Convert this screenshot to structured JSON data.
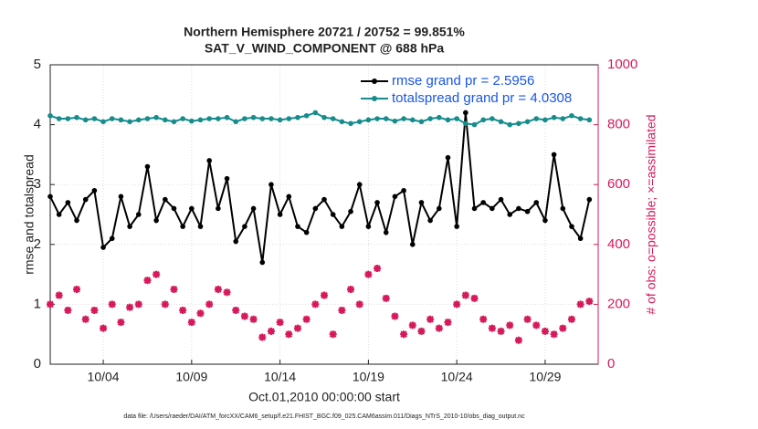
{
  "chart_data": {
    "type": "line",
    "title": "Northern Hemisphere 20721 / 20752 = 99.851%",
    "subtitle": "SAT_V_WIND_COMPONENT @ 688 hPa",
    "xlabel": "Oct.01,2010 00:00:00 start",
    "ylabel": "rmse and totalspread",
    "y2label": "# of obs: o=possible; ×=assimilated",
    "footnote": "data file: /Users/raeder/DAI/ATM_forcXX/CAM6_setup/f.e21.FHIST_BGC.f09_025.CAM6assim.011/Diags_NTrS_2010-10/obs_diag_output.nc",
    "x": [
      0,
      0.5,
      1,
      1.5,
      2,
      2.5,
      3,
      3.5,
      4,
      4.5,
      5,
      5.5,
      6,
      6.5,
      7,
      7.5,
      8,
      8.5,
      9,
      9.5,
      10,
      10.5,
      11,
      11.5,
      12,
      12.5,
      13,
      13.5,
      14,
      14.5,
      15,
      15.5,
      16,
      16.5,
      17,
      17.5,
      18,
      18.5,
      19,
      19.5,
      20,
      20.5,
      21,
      21.5,
      22,
      22.5,
      23,
      23.5,
      24,
      24.5,
      25,
      25.5,
      26,
      26.5,
      27,
      27.5,
      28,
      28.5,
      29,
      29.5,
      30,
      30.5
    ],
    "xlim": [
      0,
      31
    ],
    "xticks": [
      {
        "value": 3,
        "label": "10/04"
      },
      {
        "value": 8,
        "label": "10/09"
      },
      {
        "value": 13,
        "label": "10/14"
      },
      {
        "value": 18,
        "label": "10/19"
      },
      {
        "value": 23,
        "label": "10/24"
      },
      {
        "value": 28,
        "label": "10/29"
      }
    ],
    "ylim": [
      0,
      5
    ],
    "yticks": [
      0,
      1,
      2,
      3,
      4,
      5
    ],
    "y2lim": [
      0,
      1000
    ],
    "y2ticks": [
      0,
      200,
      400,
      600,
      800,
      1000
    ],
    "grid": true,
    "legend": "upper right",
    "series": [
      {
        "name": "rmse grand pr = 2.5956",
        "color": "#000000",
        "values": [
          2.8,
          2.5,
          2.7,
          2.4,
          2.75,
          2.9,
          1.95,
          2.1,
          2.8,
          2.3,
          2.5,
          3.3,
          2.4,
          2.75,
          2.6,
          2.3,
          2.6,
          2.3,
          3.4,
          2.6,
          3.1,
          2.05,
          2.3,
          2.6,
          1.7,
          3.0,
          2.5,
          2.8,
          2.3,
          2.2,
          2.6,
          2.75,
          2.5,
          2.3,
          2.55,
          3.0,
          2.3,
          2.7,
          2.2,
          2.8,
          2.9,
          2.0,
          2.7,
          2.4,
          2.6,
          3.45,
          2.3,
          4.2,
          2.6,
          2.7,
          2.6,
          2.75,
          2.5,
          2.6,
          2.55,
          2.7,
          2.4,
          3.5,
          2.6,
          2.3,
          2.1,
          2.75
        ]
      },
      {
        "name": "totalspread grand pr = 4.0308",
        "color": "#168c8c",
        "values": [
          4.15,
          4.1,
          4.1,
          4.12,
          4.08,
          4.1,
          4.05,
          4.1,
          4.08,
          4.05,
          4.08,
          4.1,
          4.12,
          4.08,
          4.05,
          4.1,
          4.06,
          4.08,
          4.1,
          4.1,
          4.12,
          4.05,
          4.1,
          4.12,
          4.1,
          4.1,
          4.08,
          4.1,
          4.12,
          4.15,
          4.2,
          4.12,
          4.1,
          4.05,
          4.02,
          4.05,
          4.08,
          4.1,
          4.1,
          4.06,
          4.1,
          4.08,
          4.05,
          4.1,
          4.12,
          4.08,
          4.1,
          4.02,
          4.0,
          4.08,
          4.1,
          4.05,
          4.0,
          4.02,
          4.05,
          4.1,
          4.08,
          4.12,
          4.1,
          4.15,
          4.1,
          4.08
        ]
      },
      {
        "name": "# of obs",
        "color": "#d6195a",
        "axis": "y2",
        "values": [
          200,
          230,
          180,
          250,
          150,
          180,
          120,
          200,
          140,
          190,
          200,
          280,
          300,
          200,
          250,
          180,
          140,
          170,
          200,
          250,
          240,
          180,
          160,
          150,
          90,
          110,
          140,
          100,
          120,
          150,
          200,
          230,
          100,
          180,
          250,
          200,
          300,
          320,
          220,
          160,
          100,
          130,
          110,
          150,
          120,
          140,
          200,
          230,
          220,
          150,
          120,
          110,
          130,
          80,
          150,
          130,
          110,
          100,
          120,
          150,
          200,
          210
        ]
      }
    ]
  }
}
